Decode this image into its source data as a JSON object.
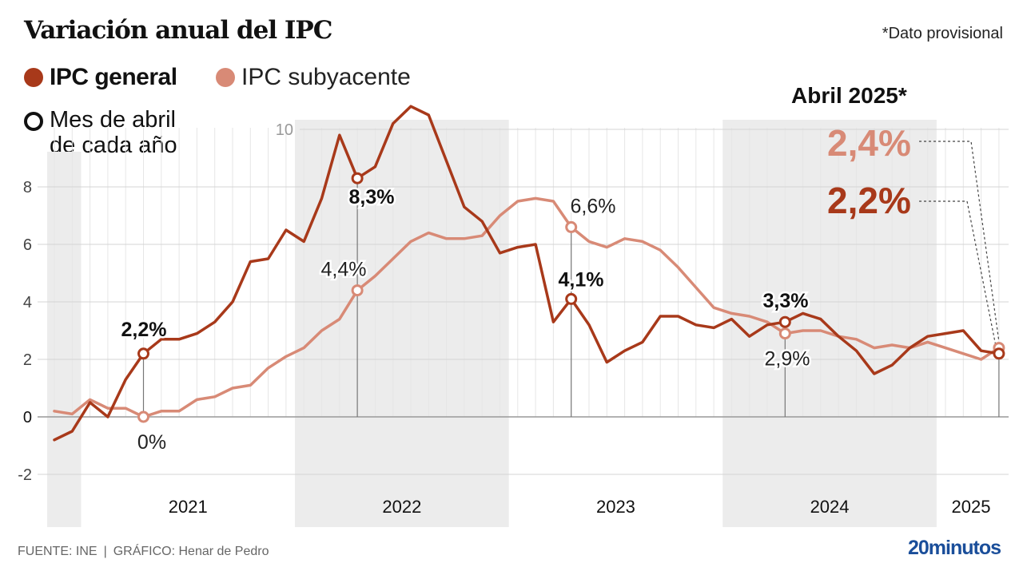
{
  "title": "Variación anual del IPC",
  "note": "*Dato provisional",
  "legend": {
    "general": "IPC general",
    "subyacente": "IPC subyacente",
    "april_marker_line1": "Mes de abril",
    "april_marker_line2": "de cada año"
  },
  "callout": {
    "title": "Abril 2025*",
    "subyacente_value": "2,4%",
    "general_value": "2,2%"
  },
  "footer": {
    "source": "FUENTE: INE",
    "separator": "|",
    "credit": "GRÁFICO: Henar de Pedro"
  },
  "logo": "20minutos",
  "colors": {
    "general": "#a8391a",
    "subyacente": "#d88a76",
    "band": "#ececec"
  },
  "chart_data": {
    "type": "line",
    "title": "Variación anual del IPC",
    "xlabel": "",
    "ylabel": "",
    "ylim": [
      -3.5,
      11
    ],
    "yticks": [
      -2,
      0,
      2,
      4,
      6,
      8,
      10
    ],
    "ytick_labels": [
      "-2",
      "0",
      "2",
      "4",
      "6",
      "8",
      "10"
    ],
    "grid": true,
    "legend_position": "top-left",
    "start_month": "2020-11",
    "end_month": "2025-04",
    "year_labels": [
      {
        "label": "2021",
        "shaded": false
      },
      {
        "label": "2022",
        "shaded": true
      },
      {
        "label": "2023",
        "shaded": false
      },
      {
        "label": "2024",
        "shaded": true
      },
      {
        "label": "2025",
        "shaded": false
      }
    ],
    "series": [
      {
        "name": "IPC general",
        "values": [
          -0.8,
          -0.5,
          0.5,
          0.0,
          1.3,
          2.2,
          2.7,
          2.7,
          2.9,
          3.3,
          4.0,
          5.4,
          5.5,
          6.5,
          6.1,
          7.6,
          9.8,
          8.3,
          8.7,
          10.2,
          10.8,
          10.5,
          8.9,
          7.3,
          6.8,
          5.7,
          5.9,
          6.0,
          3.3,
          4.1,
          3.2,
          1.9,
          2.3,
          2.6,
          3.5,
          3.5,
          3.2,
          3.1,
          3.4,
          2.8,
          3.2,
          3.3,
          3.6,
          3.4,
          2.8,
          2.3,
          1.5,
          1.8,
          2.4,
          2.8,
          2.9,
          3.0,
          2.3,
          2.2
        ]
      },
      {
        "name": "IPC subyacente",
        "values": [
          0.2,
          0.1,
          0.6,
          0.3,
          0.3,
          0.0,
          0.2,
          0.2,
          0.6,
          0.7,
          1.0,
          1.1,
          1.7,
          2.1,
          2.4,
          3.0,
          3.4,
          4.4,
          4.9,
          5.5,
          6.1,
          6.4,
          6.2,
          6.2,
          6.3,
          7.0,
          7.5,
          7.6,
          7.5,
          6.6,
          6.1,
          5.9,
          6.2,
          6.1,
          5.8,
          5.2,
          4.5,
          3.8,
          3.6,
          3.5,
          3.3,
          2.9,
          3.0,
          3.0,
          2.8,
          2.7,
          2.4,
          2.5,
          2.4,
          2.6,
          2.4,
          2.2,
          2.0,
          2.4
        ]
      }
    ],
    "annotations": [
      {
        "month": "2021-04",
        "general": "2,2%",
        "subyacente": "0%"
      },
      {
        "month": "2022-04",
        "general": "8,3%",
        "subyacente": "4,4%"
      },
      {
        "month": "2023-04",
        "general": "4,1%",
        "subyacente": "6,6%"
      },
      {
        "month": "2024-04",
        "general": "3,3%",
        "subyacente": "2,9%"
      },
      {
        "month": "2025-04",
        "general": "2,2%",
        "subyacente": "2,4%"
      }
    ]
  }
}
